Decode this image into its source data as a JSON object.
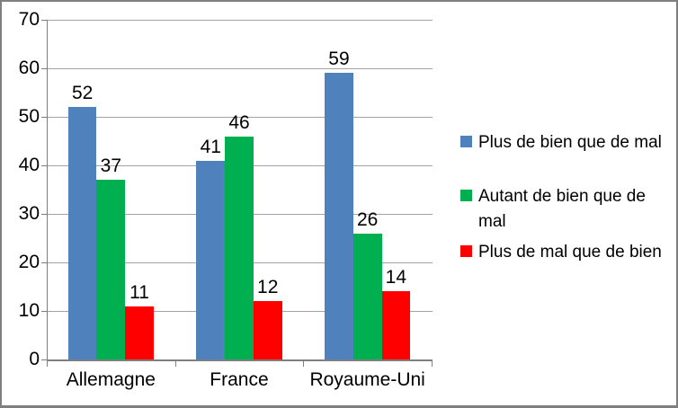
{
  "chart_data": {
    "type": "bar",
    "title": "",
    "xlabel": "",
    "ylabel": "",
    "categories": [
      "Allemagne",
      "France",
      "Royaume-Uni"
    ],
    "series": [
      {
        "name": "Plus de bien que de mal",
        "legend_label": "Plus de bien que de mal",
        "color": "#4F81BD",
        "values": [
          52,
          41,
          59
        ]
      },
      {
        "name": "Autant de bien que de mal",
        "legend_label": "Autant de bien que de\nmal",
        "color": "#00B050",
        "values": [
          37,
          46,
          26
        ]
      },
      {
        "name": "Plus de mal que de bien",
        "legend_label": "Plus de mal que de bien",
        "color": "#FF0000",
        "values": [
          11,
          12,
          14
        ]
      }
    ],
    "ylim": [
      0,
      70
    ],
    "yticks": [
      0,
      10,
      20,
      30,
      40,
      50,
      60,
      70
    ],
    "grid": true,
    "data_labels": true,
    "legend_position": "right"
  },
  "style": {
    "gridline_color": "#A3A3A3",
    "axis_color": "#7F7F7F",
    "text_color": "#000000",
    "frame_border_color": "#7F7F7F",
    "background": "#FFFFFF"
  }
}
